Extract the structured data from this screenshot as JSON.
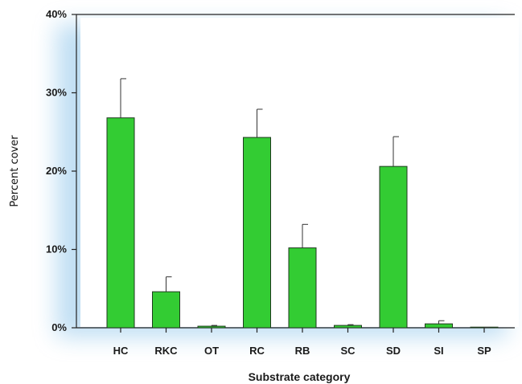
{
  "chart_data": {
    "type": "bar",
    "title": "",
    "xlabel": "Substrate category",
    "ylabel": "Percent cover",
    "ylim": [
      0,
      40
    ],
    "yticks": [
      "0%",
      "10%",
      "20%",
      "30%",
      "40%"
    ],
    "yticks_values": [
      0,
      10,
      20,
      30,
      40
    ],
    "categories": [
      "HC",
      "RKC",
      "OT",
      "RC",
      "RB",
      "SC",
      "SD",
      "SI",
      "SP"
    ],
    "values": [
      26.8,
      4.6,
      0.2,
      24.3,
      10.2,
      0.3,
      20.6,
      0.5,
      0.0
    ],
    "errors": [
      5.0,
      1.9,
      0.1,
      3.6,
      3.0,
      0.1,
      3.8,
      0.4,
      0.05
    ],
    "bar_color": "#33cc33",
    "bar_stroke": "#1f3a1f",
    "glow_color": "#8cc4ea",
    "grid": false,
    "legend": "none"
  }
}
